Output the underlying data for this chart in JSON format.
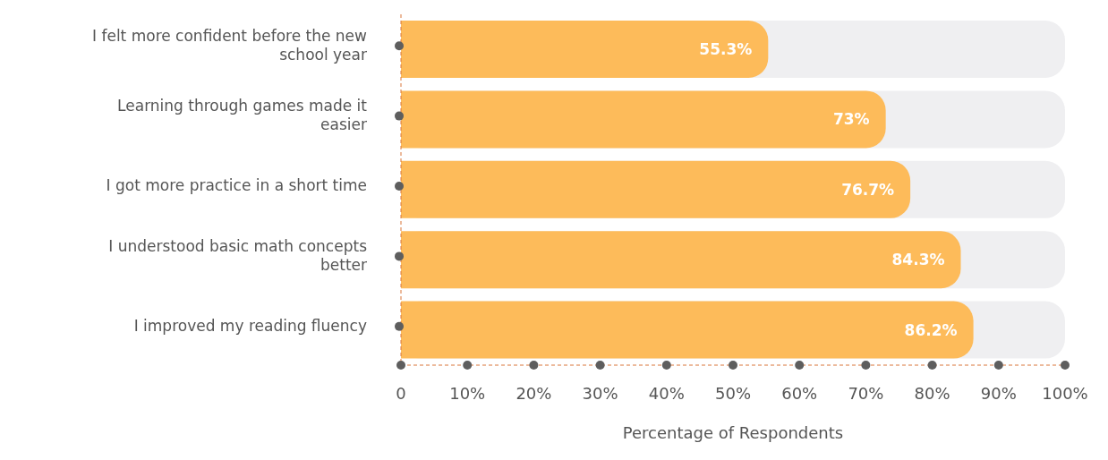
{
  "chart_data": {
    "type": "bar",
    "orientation": "horizontal",
    "xlabel": "Percentage of Respondents",
    "categories": [
      "I felt more confident before the  new school year",
      "Learning through games made it easier",
      "I got more practice in a short time",
      "I understood basic math concepts better",
      "I improved my reading fluency"
    ],
    "values": [
      55.3,
      73,
      76.7,
      84.3,
      86.2
    ],
    "value_labels": [
      "55.3%",
      "73%",
      "76.7%",
      "84.3%",
      "86.2%"
    ],
    "color": "#fdbb5a",
    "xlim": [
      0,
      100
    ],
    "xticks": [
      0,
      {
        "value": 10,
        "label": "10%"
      },
      {
        "value": 20,
        "label": "20%"
      },
      {
        "value": 30,
        "label": "30%"
      },
      {
        "value": 40,
        "label": "40%"
      },
      {
        "value": 50,
        "label": "50%"
      },
      {
        "value": 60,
        "label": "60%"
      },
      {
        "value": 70,
        "label": "70%"
      },
      {
        "value": 80,
        "label": "80%"
      },
      {
        "value": 90,
        "label": "90%"
      },
      {
        "value": 100,
        "label": "100%"
      }
    ],
    "grid": false,
    "legend": false
  }
}
